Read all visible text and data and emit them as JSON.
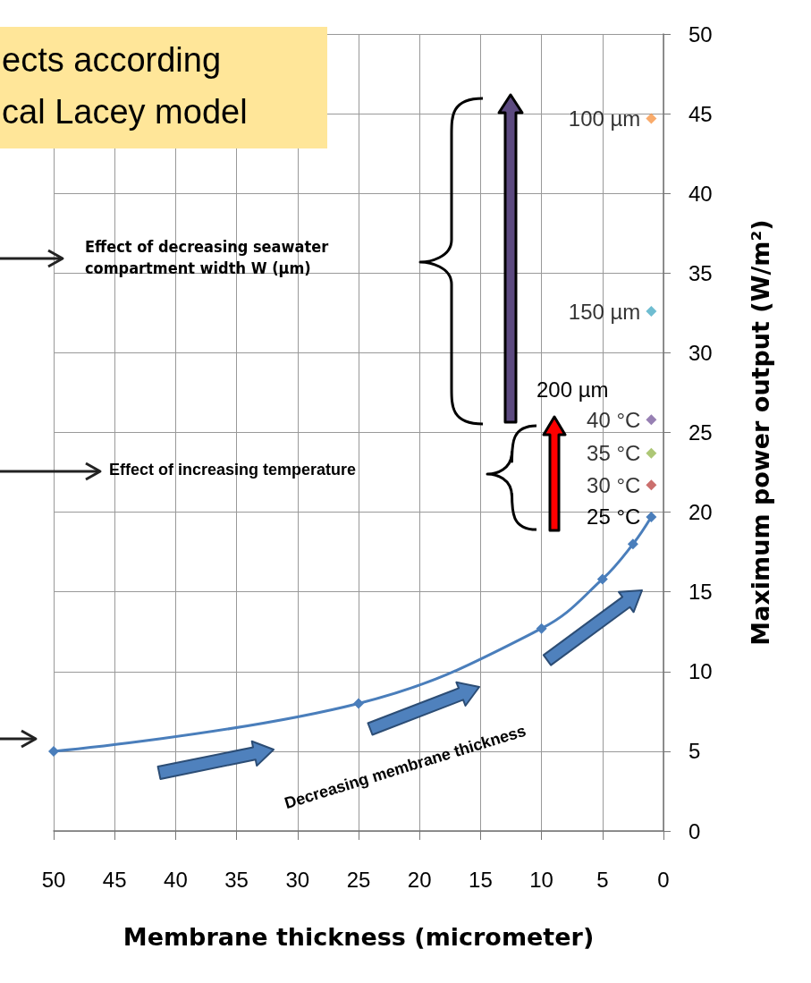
{
  "chart_data": {
    "type": "line",
    "xlabel": "Membrane thickness (micrometer)",
    "ylabel": "Maximum power output (W/m²)",
    "xlim": [
      50,
      0
    ],
    "xticks": [
      50,
      45,
      40,
      35,
      30,
      25,
      20,
      15,
      10,
      5,
      0
    ],
    "ylim": [
      0,
      50
    ],
    "yticks": [
      0,
      5,
      10,
      15,
      20,
      25,
      30,
      35,
      40,
      45,
      50
    ],
    "grid": true,
    "marker": "diamond",
    "series": [
      {
        "name": "25 °C",
        "color": "#4a7ebb",
        "x": [
          50,
          25,
          10,
          5,
          2.5,
          1
        ],
        "values": [
          5.0,
          8.0,
          12.7,
          15.8,
          18.0,
          19.7
        ]
      },
      {
        "type": "scatter",
        "name": "30 °C",
        "color": "#be4b48",
        "x": [
          1
        ],
        "values": [
          21.7
        ]
      },
      {
        "type": "scatter",
        "name": "35 °C",
        "color": "#98b954",
        "x": [
          1
        ],
        "values": [
          23.7
        ]
      },
      {
        "type": "scatter",
        "name": "40 °C",
        "color": "#7d60a0",
        "x": [
          1
        ],
        "values": [
          25.8
        ]
      },
      {
        "type": "scatter",
        "name": "150 µm",
        "color": "#4bacc6",
        "x": [
          1
        ],
        "values": [
          32.6
        ]
      },
      {
        "type": "scatter",
        "name": "100 µm",
        "color": "#f79646",
        "x": [
          1
        ],
        "values": [
          44.7
        ]
      }
    ],
    "annotations": [
      "ects according",
      "cal Lacey model",
      "Effect of decreasing seawater compartment width W (µm)",
      "Effect of increasing temperature",
      "Decreasing membrane thickness",
      "200 µm"
    ]
  }
}
